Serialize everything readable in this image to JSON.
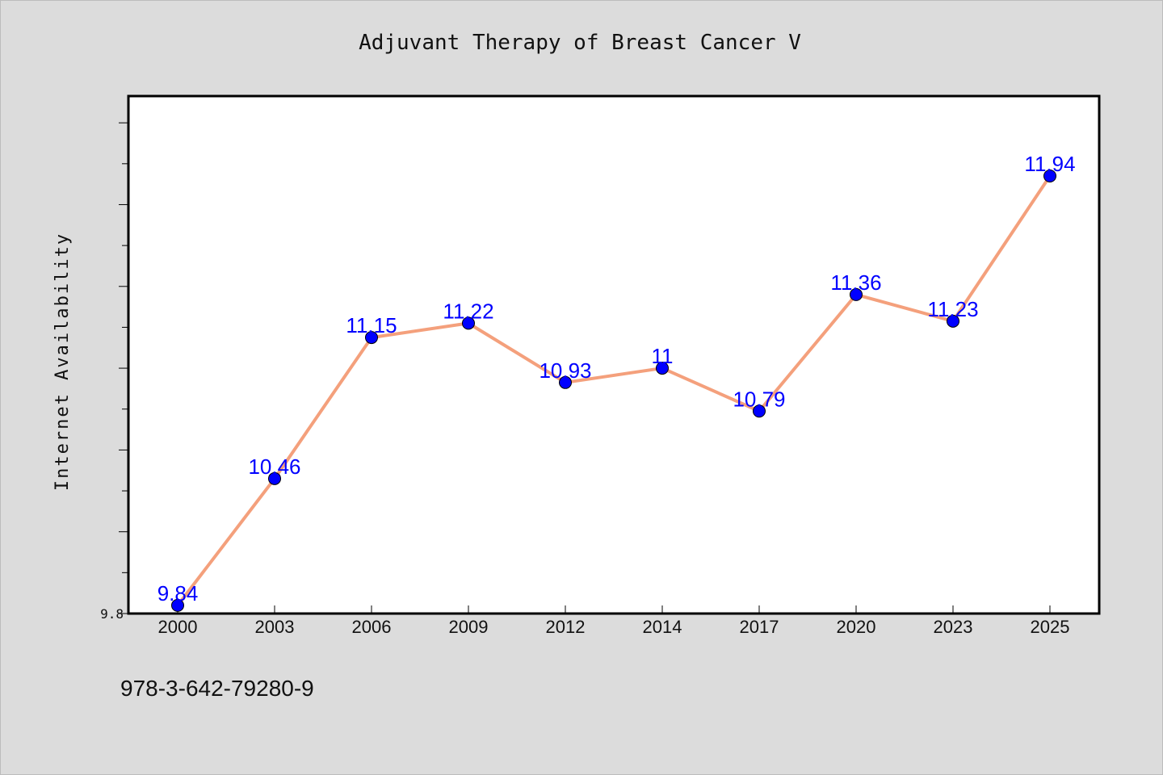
{
  "chart_data": {
    "type": "line",
    "title": "Adjuvant Therapy of Breast Cancer V",
    "xlabel": "",
    "ylabel": "Internet Availability",
    "categories": [
      "2000",
      "2003",
      "2006",
      "2009",
      "2012",
      "2014",
      "2017",
      "2020",
      "2023",
      "2025"
    ],
    "series": [
      {
        "values": [
          9.84,
          10.46,
          11.15,
          11.22,
          10.93,
          11,
          10.79,
          11.36,
          11.23,
          11.94
        ],
        "labels": [
          "9.84",
          "10.46",
          "11.15",
          "11.22",
          "10.93",
          "11",
          "10.79",
          "11.36",
          "11.23",
          "11.94"
        ]
      }
    ],
    "ylim": [
      9.8,
      12.4
    ],
    "yticks_labeled": [
      "9.8"
    ],
    "grid": false,
    "legend": "none",
    "colors": {
      "line": "#f4a07c",
      "marker": "#0000ff",
      "data_label": "#0000ff",
      "plot_background": "#ffffff",
      "figure_background": "#dcdcdc"
    }
  },
  "footnote": "978-3-642-79280-9"
}
